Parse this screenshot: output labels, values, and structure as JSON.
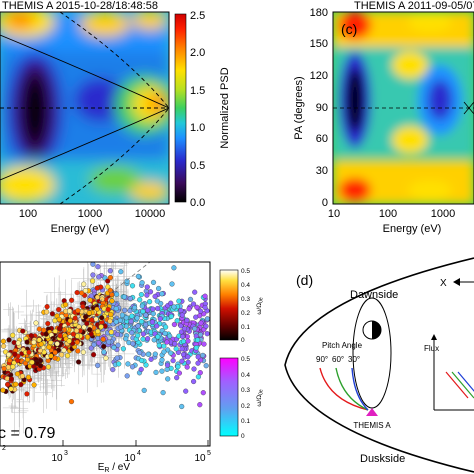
{
  "chart_data": [
    {
      "type": "heatmap",
      "title": "THEMIS A 2015-10-28/18:48:58",
      "xlabel": "Energy (eV)",
      "ylabel": "",
      "xscale": "log",
      "xticks": [
        "100",
        "1000",
        "10000"
      ],
      "colorbar": {
        "label": "Normalized PSD",
        "ticks": [
          "0.0",
          "0.5",
          "1.0",
          "1.5",
          "2.0",
          "2.5"
        ],
        "range": [
          0,
          2.5
        ]
      }
    },
    {
      "type": "heatmap",
      "panel_label": "(c)",
      "title": "THEMIS A 2011-09-05/07",
      "xlabel": "Energy (eV)",
      "ylabel": "PA (degrees)",
      "xscale": "log",
      "xticks": [
        "10",
        "100",
        "1000"
      ],
      "yticks": [
        "0",
        "30",
        "60",
        "90",
        "120",
        "150",
        "180"
      ],
      "ylim": [
        0,
        180
      ]
    },
    {
      "type": "scatter",
      "xlabel_main": "E",
      "xlabel_sub": "R",
      "xlabel_unit": " / eV",
      "xscale": "log",
      "xticks": [
        "10",
        "10",
        "10"
      ],
      "xtick_exp": [
        "3",
        "4",
        "5"
      ],
      "left_tick_exp": "2",
      "annotation": "c = 0.79",
      "colorbars": [
        {
          "label": "ω/Ω",
          "sub": "0e",
          "ticks": [
            "0.5",
            "0.4",
            "0.3",
            "0.2",
            "0.1",
            "0"
          ]
        },
        {
          "label": "ω/Ω",
          "sub": "0e",
          "ticks": [
            "0.5",
            "0.4",
            "0.3",
            "0.2",
            "0.1",
            "0"
          ]
        }
      ]
    }
  ],
  "diagram": {
    "panel_label": "(d)",
    "dawnside": "Dawnside",
    "duskside": "Duskside",
    "x_axis": "X",
    "pitch_angle": "Pitch Angle",
    "angles": [
      {
        "label": "90°",
        "color": "#e41a1c"
      },
      {
        "label": "60°",
        "color": "#2ca02c"
      },
      {
        "label": "30°",
        "color": "#1f3fd6"
      }
    ],
    "flux": "Flux",
    "satellite": "THEMIS A",
    "satellite_color": "#e020c0"
  }
}
